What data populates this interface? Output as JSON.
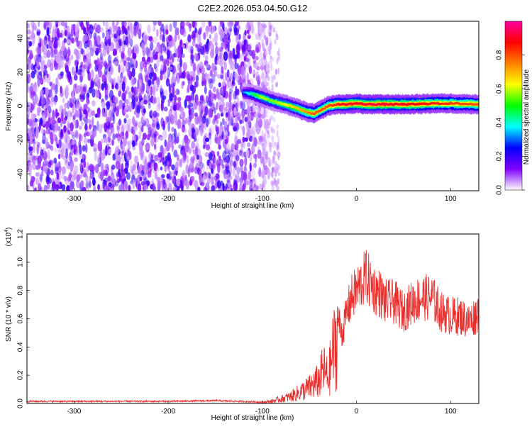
{
  "title": "C2E2.2026.053.04.50.G12",
  "chart_data": [
    {
      "type": "heatmap",
      "xlabel": "Height of straight line (km)",
      "ylabel": "Frequency (Hz)",
      "xlim": [
        -350,
        130
      ],
      "ylim": [
        -50,
        50
      ],
      "xticks": [
        "-300",
        "-200",
        "-100",
        "0",
        "100"
      ],
      "xtick_values": [
        -300,
        -200,
        -100,
        0,
        100
      ],
      "yticks": [
        "-40",
        "-20",
        "0",
        "20",
        "40"
      ],
      "ytick_values": [
        -40,
        -20,
        0,
        20,
        40
      ],
      "colorbar": {
        "label": "Normalized spectral amplitude",
        "range": [
          0,
          1
        ],
        "ticks": [
          "0.0",
          "0.2",
          "0.4",
          "0.6",
          "0.8"
        ],
        "tick_values": [
          0,
          0.2,
          0.4,
          0.6,
          0.8
        ],
        "colors": [
          "#ffffff",
          "#8000ff",
          "#0000ff",
          "#00ffff",
          "#00ff00",
          "#ffff00",
          "#ff8000",
          "#ff0000",
          "#ff00a0"
        ]
      },
      "noise_region_x": [
        -350,
        -100
      ],
      "ridge": {
        "x": [
          -120,
          -110,
          -100,
          -90,
          -80,
          -70,
          -60,
          -50,
          -45,
          -40,
          -30,
          -20,
          -10,
          0,
          10,
          20,
          40,
          60,
          80,
          100,
          130
        ],
        "freq": [
          8,
          7,
          5,
          3,
          1.5,
          0,
          -2,
          -4,
          -4.5,
          -3,
          0,
          1,
          1,
          1.5,
          1,
          1,
          1,
          1,
          1.5,
          1.5,
          1
        ],
        "amplitude": [
          0.3,
          0.45,
          0.6,
          0.55,
          0.6,
          0.65,
          0.7,
          0.75,
          0.8,
          0.8,
          0.8,
          0.85,
          0.9,
          0.9,
          0.9,
          0.92,
          0.9,
          0.88,
          0.85,
          0.82,
          0.8
        ]
      },
      "grid": false
    },
    {
      "type": "line",
      "xlabel": "Height of straight line (km)",
      "ylabel": "SNR (10 * v/v)",
      "y_multiplier": "(x10",
      "y_multiplier_exp": "4",
      "y_multiplier_close": ")",
      "xlim": [
        -350,
        130
      ],
      "ylim": [
        0,
        1.2
      ],
      "xticks": [
        "-300",
        "-200",
        "-100",
        "0",
        "100"
      ],
      "xtick_values": [
        -300,
        -200,
        -100,
        0,
        100
      ],
      "yticks": [
        "0.0",
        "0.2",
        "0.4",
        "0.6",
        "0.8",
        "1.0",
        "1.2"
      ],
      "ytick_values": [
        0,
        0.2,
        0.4,
        0.6,
        0.8,
        1.0,
        1.2
      ],
      "series_color": "#e8302e",
      "envelope": {
        "x": [
          -350,
          -300,
          -200,
          -150,
          -100,
          -90,
          -80,
          -70,
          -60,
          -50,
          -40,
          -35,
          -30,
          -25,
          -20,
          -15,
          -10,
          -5,
          0,
          5,
          10,
          15,
          20,
          25,
          30,
          40,
          50,
          60,
          70,
          80,
          90,
          100,
          110,
          120,
          130
        ],
        "y": [
          0.015,
          0.015,
          0.015,
          0.02,
          0.01,
          0.02,
          0.04,
          0.06,
          0.1,
          0.14,
          0.2,
          0.3,
          0.22,
          0.45,
          0.6,
          0.5,
          0.65,
          0.75,
          0.8,
          0.85,
          0.9,
          0.85,
          0.8,
          0.78,
          0.72,
          0.72,
          0.65,
          0.72,
          0.75,
          0.75,
          0.65,
          0.62,
          0.62,
          0.58,
          0.65
        ]
      },
      "grid": false
    }
  ]
}
